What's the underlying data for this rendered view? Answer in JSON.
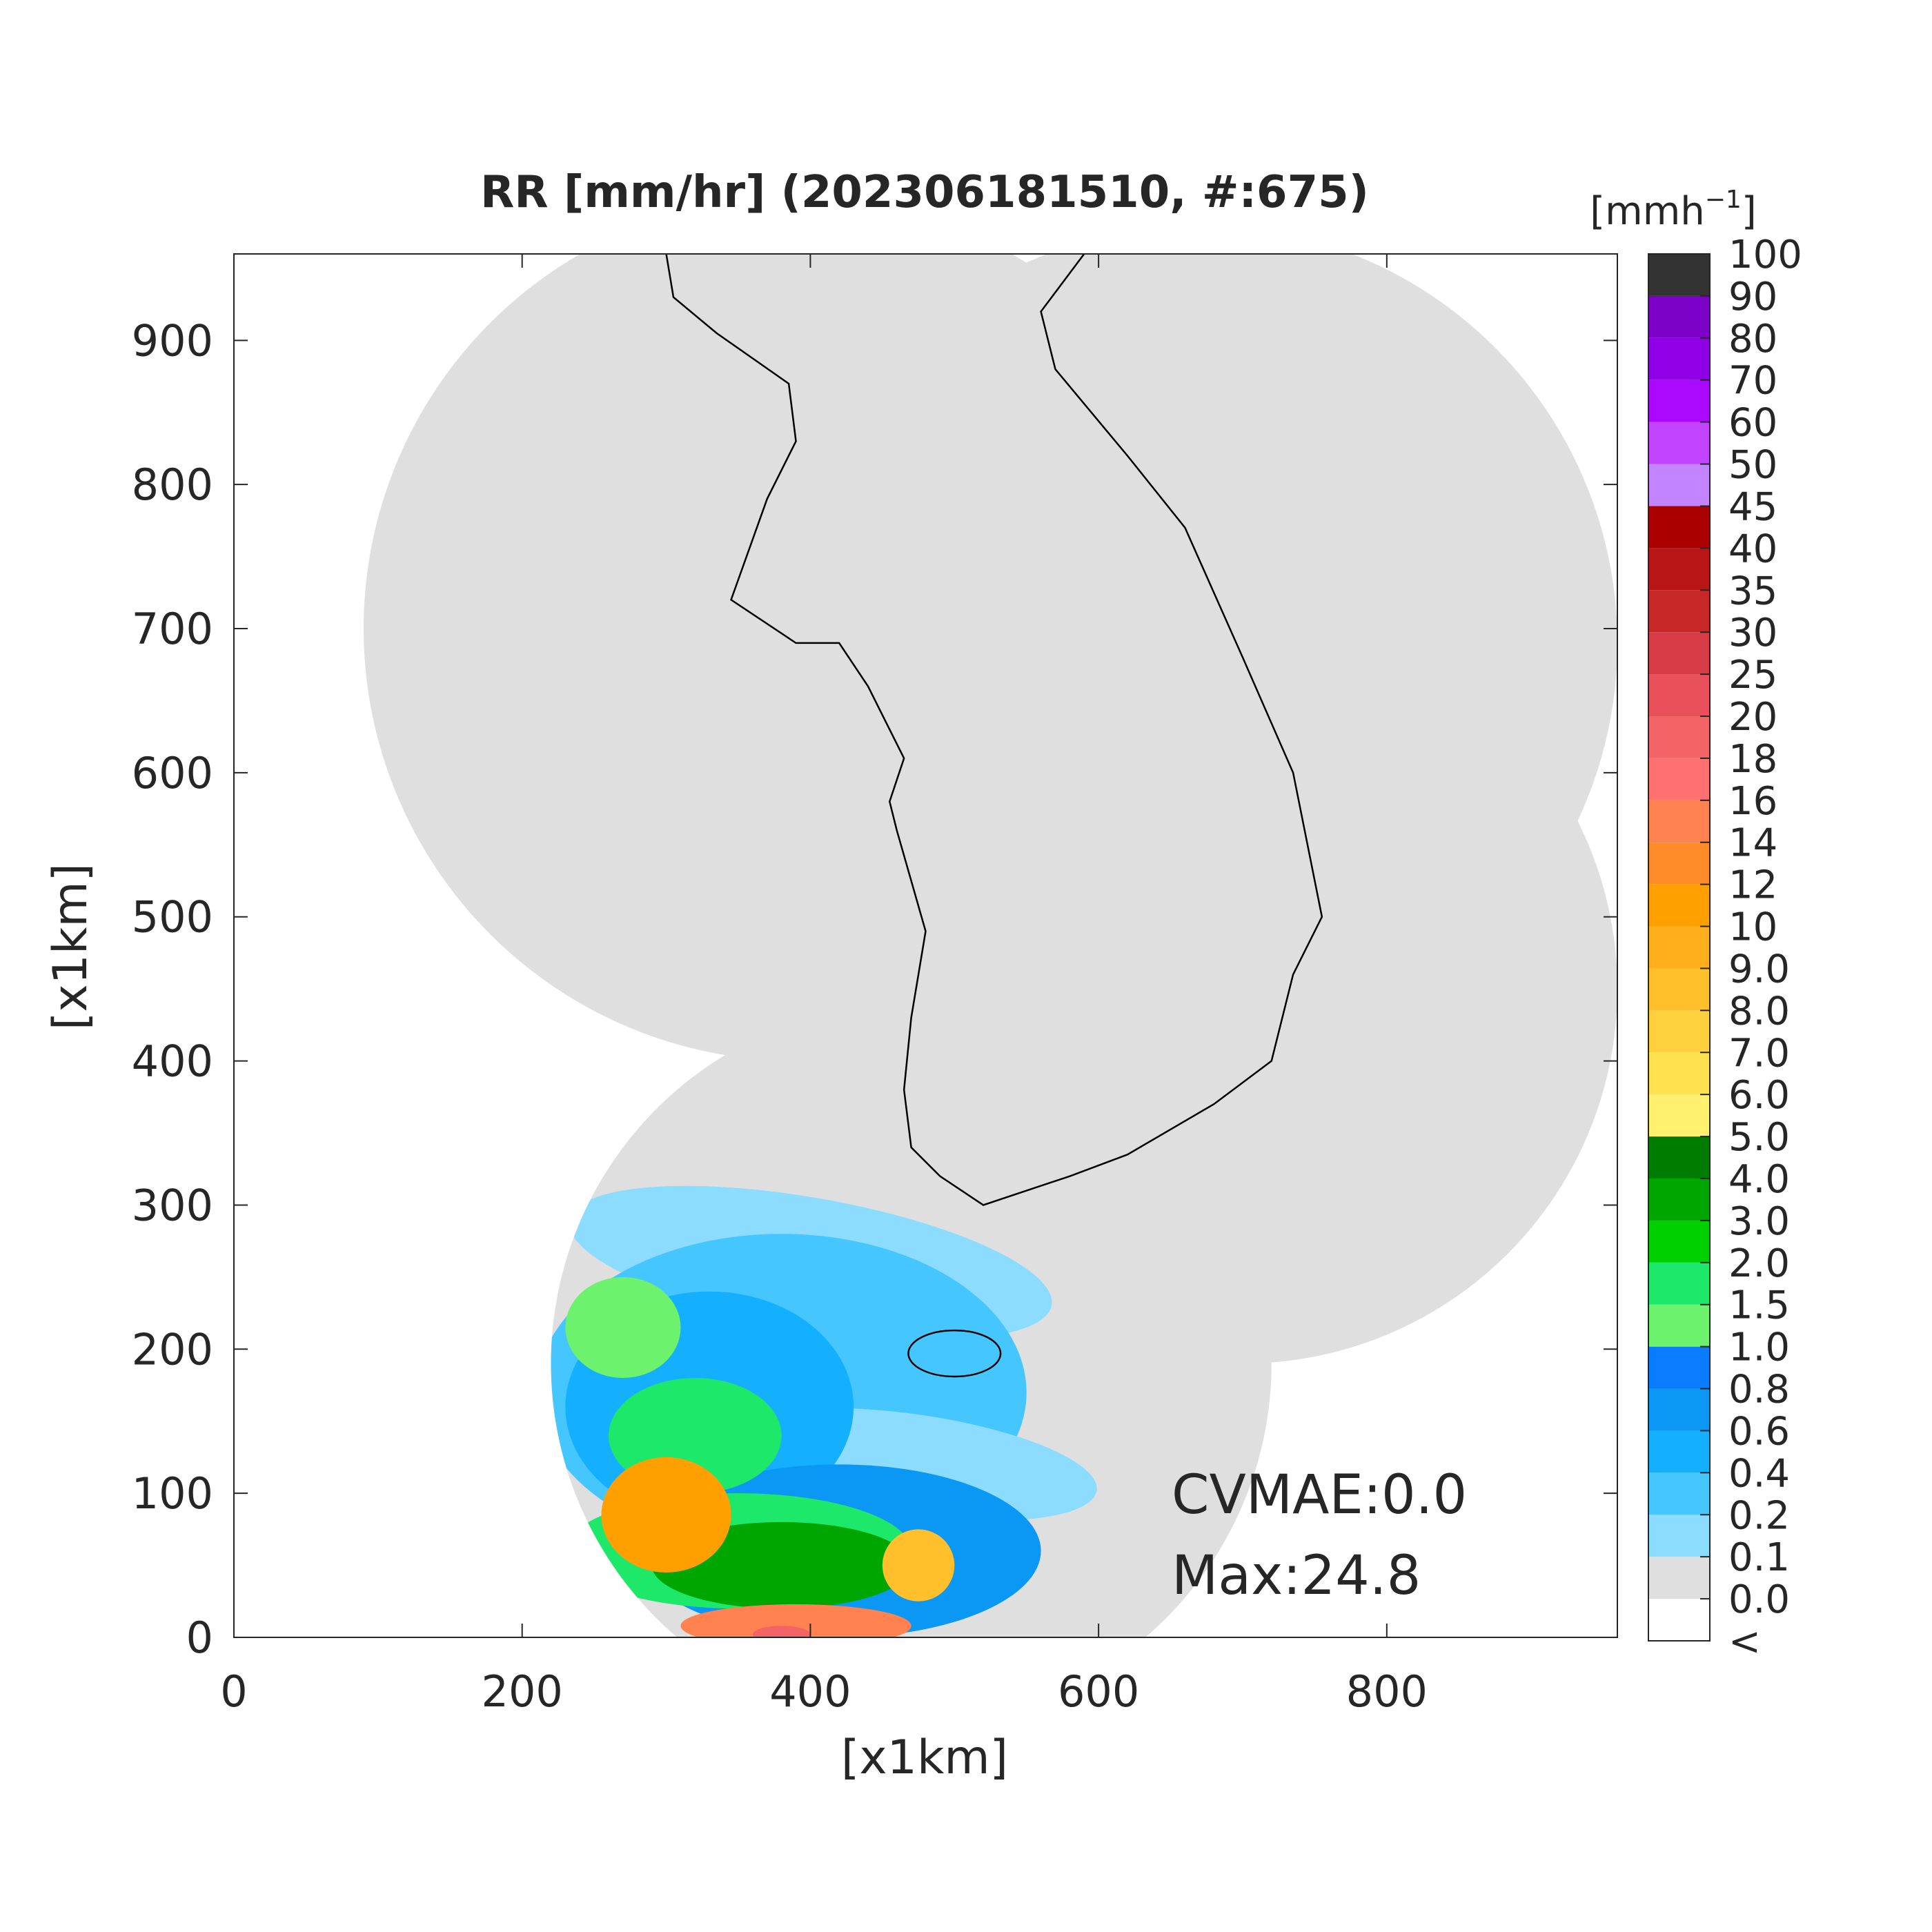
{
  "chart_data": {
    "type": "map",
    "title": "RR [mm/hr] (202306181510, #:675)",
    "xlabel": "[x1km]",
    "ylabel": "[x1km]",
    "xlim": [
      0,
      960
    ],
    "ylim": [
      0,
      960
    ],
    "xticks": [
      0,
      200,
      400,
      600,
      800
    ],
    "yticks": [
      0,
      100,
      200,
      300,
      400,
      500,
      600,
      700,
      800,
      900
    ],
    "annotations": [
      "CVMAE:0.0",
      "Max:24.8"
    ],
    "colorbar": {
      "label": {
        "base": "[mmh",
        "exponent": "−1",
        "close": "]"
      },
      "under_label": "<",
      "ticks": [
        {
          "value": 0,
          "label": "0.0"
        },
        0.1,
        0.2,
        0.4,
        0.6,
        0.8,
        {
          "value": 1,
          "label": "1.0"
        },
        1.5,
        {
          "value": 2,
          "label": "2.0"
        },
        {
          "value": 3,
          "label": "3.0"
        },
        {
          "value": 4,
          "label": "4.0"
        },
        {
          "value": 5,
          "label": "5.0"
        },
        {
          "value": 6,
          "label": "6.0"
        },
        {
          "value": 7,
          "label": "7.0"
        },
        {
          "value": 8,
          "label": "8.0"
        },
        {
          "value": 9,
          "label": "9.0"
        },
        10,
        12,
        14,
        16,
        18,
        20,
        25,
        30,
        35,
        40,
        45,
        50,
        60,
        70,
        80,
        90,
        100
      ],
      "colors": [
        "#ffffff",
        "#dfdfdf",
        "#8cdcff",
        "#46c6ff",
        "#14b0ff",
        "#0b98f5",
        "#0a7cff",
        "#6cf26c",
        "#1ee86a",
        "#00d000",
        "#00a600",
        "#007c00",
        "#fff06e",
        "#ffe04e",
        "#ffd03e",
        "#ffc02c",
        "#ffae1c",
        "#ffa000",
        "#ff8c28",
        "#ff8250",
        "#ff7070",
        "#f26466",
        "#e8505c",
        "#d83c46",
        "#c82828",
        "#b81616",
        "#aa0000",
        "#c284ff",
        "#c244ff",
        "#aa08ff",
        "#9000e6",
        "#7c00c8",
        "#333333"
      ]
    }
  }
}
